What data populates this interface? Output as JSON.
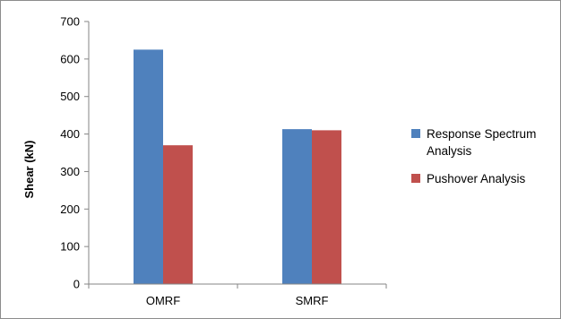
{
  "chart_data": {
    "type": "bar",
    "title": "",
    "xlabel": "",
    "ylabel": "Shear (kN)",
    "ylim": [
      0,
      700
    ],
    "yticks": [
      0,
      100,
      200,
      300,
      400,
      500,
      600,
      700
    ],
    "grid": false,
    "legend_position": "right",
    "categories": [
      "OMRF",
      "SMRF"
    ],
    "series": [
      {
        "name": "Response Spectrum Analysis",
        "legend_lines": [
          "Response Spectrum",
          "Analysis"
        ],
        "color": "#4f81bd",
        "values": [
          625,
          413
        ]
      },
      {
        "name": "Pushover Analysis",
        "legend_lines": [
          "Pushover Analysis"
        ],
        "color": "#c0504d",
        "values": [
          370,
          410
        ]
      }
    ]
  }
}
